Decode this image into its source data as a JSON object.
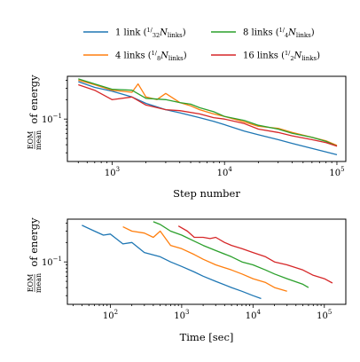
{
  "legend": [
    {
      "label": "1 link",
      "fraction": "1/32",
      "color": "#1f77b4"
    },
    {
      "label": "8 links",
      "fraction": "1/4",
      "color": "#2ca02c"
    },
    {
      "label": "4 links",
      "fraction": "1/8",
      "color": "#ff7f0e"
    },
    {
      "label": "16 links",
      "fraction": "1/2",
      "color": "#d62728"
    }
  ],
  "legend_symbol": "N",
  "legend_subscript": "links",
  "ylabel_fraction": {
    "num": "EOM",
    "den": "mean"
  },
  "ylabel_text": "of energy",
  "chart_data": [
    {
      "type": "line",
      "xlabel": "Step number",
      "xscale": "log",
      "yscale": "log",
      "xlim": [
        400,
        120000
      ],
      "ylim": [
        0.022,
        0.46
      ],
      "xticks": [
        {
          "value": 1000,
          "base": "10",
          "exp": "3"
        },
        {
          "value": 10000,
          "base": "10",
          "exp": "4"
        },
        {
          "value": 100000,
          "base": "10",
          "exp": "5"
        }
      ],
      "yticks": [
        {
          "value": 0.1,
          "base": "10",
          "exp": "−1"
        }
      ],
      "series": [
        {
          "name": "1 link",
          "color": "#1f77b4",
          "x": [
            500,
            700,
            1000,
            1500,
            2000,
            3000,
            4000,
            6000,
            8000,
            10000,
            15000,
            20000,
            30000,
            40000,
            60000,
            80000,
            100000
          ],
          "y": [
            0.38,
            0.31,
            0.27,
            0.22,
            0.175,
            0.14,
            0.125,
            0.105,
            0.092,
            0.082,
            0.065,
            0.057,
            0.048,
            0.042,
            0.035,
            0.031,
            0.028
          ]
        },
        {
          "name": "4 links",
          "color": "#ff7f0e",
          "x": [
            500,
            700,
            1000,
            1500,
            1700,
            2000,
            2500,
            3000,
            4000,
            5000,
            6000,
            8000,
            10000,
            15000,
            20000,
            30000,
            40000,
            60000,
            80000,
            100000
          ],
          "y": [
            0.4,
            0.34,
            0.28,
            0.26,
            0.35,
            0.22,
            0.2,
            0.25,
            0.18,
            0.16,
            0.14,
            0.12,
            0.11,
            0.09,
            0.077,
            0.072,
            0.062,
            0.052,
            0.046,
            0.039
          ]
        },
        {
          "name": "8 links",
          "color": "#2ca02c",
          "x": [
            500,
            700,
            1000,
            1500,
            2000,
            3000,
            4000,
            5000,
            6000,
            8000,
            10000,
            15000,
            20000,
            30000,
            40000,
            60000,
            80000,
            100000
          ],
          "y": [
            0.42,
            0.35,
            0.29,
            0.28,
            0.21,
            0.2,
            0.18,
            0.17,
            0.15,
            0.13,
            0.11,
            0.095,
            0.08,
            0.07,
            0.06,
            0.052,
            0.045,
            0.038
          ]
        },
        {
          "name": "16 links",
          "color": "#d62728",
          "x": [
            500,
            700,
            1000,
            1500,
            2000,
            3000,
            4000,
            6000,
            8000,
            10000,
            15000,
            20000,
            30000,
            40000,
            60000,
            80000,
            100000
          ],
          "y": [
            0.34,
            0.28,
            0.2,
            0.22,
            0.165,
            0.14,
            0.135,
            0.12,
            0.105,
            0.1,
            0.085,
            0.07,
            0.062,
            0.055,
            0.048,
            0.043,
            0.038
          ]
        }
      ]
    },
    {
      "type": "line",
      "xlabel": "Time [sec]",
      "xscale": "log",
      "yscale": "log",
      "xlim": [
        25,
        200000
      ],
      "ylim": [
        0.022,
        0.46
      ],
      "xticks": [
        {
          "value": 100,
          "base": "10",
          "exp": "2"
        },
        {
          "value": 1000,
          "base": "10",
          "exp": "3"
        },
        {
          "value": 10000,
          "base": "10",
          "exp": "4"
        },
        {
          "value": 100000,
          "base": "10",
          "exp": "5"
        }
      ],
      "yticks": [
        {
          "value": 0.1,
          "base": "10",
          "exp": "−1"
        }
      ],
      "series": [
        {
          "name": "1 link",
          "color": "#1f77b4",
          "x": [
            40,
            60,
            80,
            100,
            150,
            200,
            300,
            500,
            700,
            1000,
            1500,
            2000,
            3000,
            5000,
            7000,
            10000,
            13000
          ],
          "y": [
            0.37,
            0.3,
            0.26,
            0.27,
            0.19,
            0.2,
            0.14,
            0.12,
            0.1,
            0.085,
            0.07,
            0.06,
            0.05,
            0.04,
            0.035,
            0.03,
            0.027
          ]
        },
        {
          "name": "4 links",
          "color": "#ff7f0e",
          "x": [
            150,
            200,
            300,
            400,
            500,
            700,
            1000,
            1500,
            2000,
            3000,
            5000,
            7000,
            10000,
            15000,
            20000,
            30000
          ],
          "y": [
            0.35,
            0.3,
            0.28,
            0.24,
            0.3,
            0.18,
            0.16,
            0.13,
            0.11,
            0.09,
            0.075,
            0.065,
            0.055,
            0.048,
            0.04,
            0.035
          ]
        },
        {
          "name": "8 links",
          "color": "#2ca02c",
          "x": [
            400,
            500,
            700,
            1000,
            1500,
            2000,
            3000,
            5000,
            7000,
            10000,
            15000,
            20000,
            30000,
            50000,
            60000
          ],
          "y": [
            0.42,
            0.38,
            0.3,
            0.26,
            0.21,
            0.18,
            0.15,
            0.12,
            0.1,
            0.09,
            0.075,
            0.065,
            0.055,
            0.045,
            0.04
          ]
        },
        {
          "name": "16 links",
          "color": "#d62728",
          "x": [
            900,
            1200,
            1500,
            2000,
            2500,
            3000,
            4000,
            5000,
            7000,
            10000,
            15000,
            20000,
            30000,
            50000,
            70000,
            100000,
            130000
          ],
          "y": [
            0.36,
            0.3,
            0.24,
            0.24,
            0.23,
            0.24,
            0.2,
            0.18,
            0.16,
            0.14,
            0.12,
            0.1,
            0.09,
            0.075,
            0.062,
            0.055,
            0.047
          ]
        }
      ]
    }
  ]
}
